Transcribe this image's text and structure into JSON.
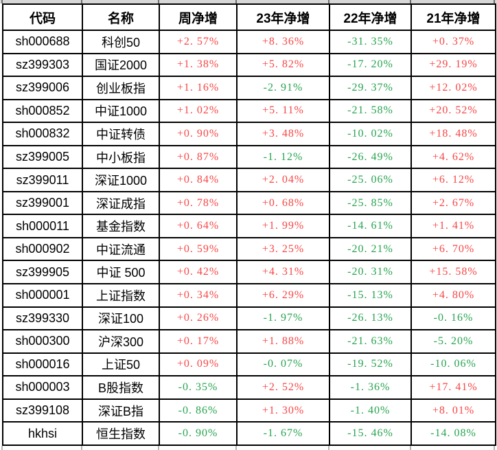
{
  "colors": {
    "positive_value": "#f84545",
    "negative_value": "#27a44f",
    "header_text": "#000000",
    "table_border": "#000000",
    "top_strip_background": "#d7d7d7"
  },
  "chart_data": {
    "type": "table",
    "title": "",
    "columns": [
      "代码",
      "名称",
      "周净增",
      "23年净增",
      "22年净增",
      "21年净增"
    ],
    "rows": [
      [
        "sh000688",
        "科创50",
        "+2. 57%",
        "+8. 36%",
        "-31. 35%",
        "+0. 37%"
      ],
      [
        "sz399303",
        "国证2000",
        "+1. 38%",
        "+5. 82%",
        "-17. 20%",
        "+29. 19%"
      ],
      [
        "sz399006",
        "创业板指",
        "+1. 16%",
        "-2. 91%",
        "-29. 37%",
        "+12. 02%"
      ],
      [
        "sh000852",
        "中证1000",
        "+1. 02%",
        "+5. 11%",
        "-21. 58%",
        "+20. 52%"
      ],
      [
        "sh000832",
        "中证转债",
        "+0. 90%",
        "+3. 48%",
        "-10. 02%",
        "+18. 48%"
      ],
      [
        "sz399005",
        "中小板指",
        "+0. 87%",
        "-1. 12%",
        "-26. 49%",
        "+4. 62%"
      ],
      [
        "sz399011",
        "深证1000",
        "+0. 84%",
        "+2. 04%",
        "-25. 06%",
        "+6. 12%"
      ],
      [
        "sz399001",
        "深证成指",
        "+0. 78%",
        "+0. 68%",
        "-25. 85%",
        "+2. 67%"
      ],
      [
        "sh000011",
        "基金指数",
        "+0. 64%",
        "+1. 99%",
        "-14. 61%",
        "+1. 41%"
      ],
      [
        "sh000902",
        "中证流通",
        "+0. 59%",
        "+3. 25%",
        "-20. 21%",
        "+6. 70%"
      ],
      [
        "sz399905",
        "中证 500",
        "+0. 42%",
        "+4. 31%",
        "-20. 31%",
        "+15. 58%"
      ],
      [
        "sh000001",
        "上证指数",
        "+0. 34%",
        "+6. 29%",
        "-15. 13%",
        "+4. 80%"
      ],
      [
        "sz399330",
        "深证100",
        "+0. 26%",
        "-1. 97%",
        "-26. 13%",
        "-0. 16%"
      ],
      [
        "sh000300",
        "沪深300",
        "+0. 17%",
        "+1. 88%",
        "-21. 63%",
        "-5. 20%"
      ],
      [
        "sh000016",
        "上证50",
        "+0. 09%",
        "-0. 07%",
        "-19. 52%",
        "-10. 06%"
      ],
      [
        "sh000003",
        "B股指数",
        "-0. 35%",
        "+2. 52%",
        "-1. 36%",
        "+17. 41%"
      ],
      [
        "sz399108",
        "深证B指",
        "-0. 86%",
        "+1. 30%",
        "-1. 40%",
        "+8. 01%"
      ],
      [
        "hkhsi",
        "恒生指数",
        "-0. 90%",
        "-1. 67%",
        "-15. 46%",
        "-14. 08%"
      ]
    ],
    "value_color_rule": "values starting with + are red, values starting with - are green",
    "legend_position": "none",
    "grid": true
  }
}
